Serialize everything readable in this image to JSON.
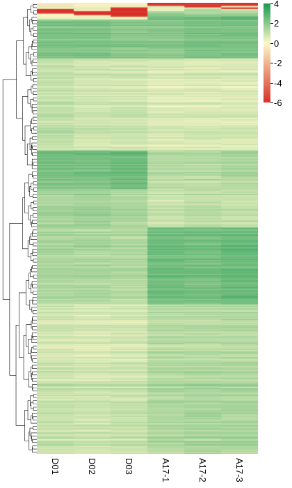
{
  "chart_data": {
    "type": "heatmap",
    "title": "",
    "xlabel": "",
    "ylabel": "",
    "columns": [
      "D01",
      "D02",
      "D03",
      "A17-1",
      "A17-2",
      "A17-3"
    ],
    "row_clustering": "hierarchical dendrogram on left",
    "colorscale": {
      "range": [
        -6,
        4
      ],
      "ticks": [
        4,
        2,
        0,
        -2,
        -4,
        -6
      ],
      "stops": [
        {
          "value": -6,
          "color": "#d73027"
        },
        {
          "value": 0,
          "color": "#fcf8c8"
        },
        {
          "value": 4,
          "color": "#1a9850"
        }
      ]
    },
    "row_blocks": [
      {
        "rows": 4,
        "values": [
          -0.6,
          -0.4,
          -0.4,
          -6.0,
          -5.8,
          -6.0
        ]
      },
      {
        "rows": 2,
        "values": [
          0.4,
          0.2,
          0.2,
          0.8,
          -5.8,
          -0.2
        ]
      },
      {
        "rows": 2,
        "values": [
          0.0,
          0.4,
          -6.0,
          0.4,
          0.6,
          -5.8
        ]
      },
      {
        "rows": 3,
        "values": [
          -6.0,
          -0.6,
          -6.0,
          0.4,
          1.4,
          0.8
        ]
      },
      {
        "rows": 3,
        "values": [
          -6.0,
          -6.0,
          -6.0,
          1.4,
          1.4,
          1.4
        ]
      },
      {
        "rows": 2,
        "values": [
          -0.2,
          -6.0,
          -6.0,
          2.0,
          1.6,
          1.8
        ]
      },
      {
        "rows": 2,
        "values": [
          0.2,
          -0.2,
          -5.8,
          2.2,
          2.0,
          2.0
        ]
      },
      {
        "rows": 4,
        "values": [
          0.2,
          0.2,
          0.4,
          2.4,
          2.6,
          3.0
        ]
      },
      {
        "rows": 50,
        "values": [
          2.2,
          2.2,
          2.0,
          2.0,
          2.2,
          2.2
        ]
      },
      {
        "rows": 120,
        "values": [
          1.0,
          0.8,
          0.8,
          0.6,
          0.6,
          0.6
        ]
      },
      {
        "rows": 50,
        "values": [
          2.3,
          2.3,
          2.5,
          1.2,
          1.2,
          1.4
        ]
      },
      {
        "rows": 50,
        "values": [
          1.5,
          1.6,
          1.4,
          0.9,
          1.1,
          1.0
        ]
      },
      {
        "rows": 100,
        "values": [
          1.4,
          1.4,
          1.3,
          2.5,
          2.4,
          2.6
        ]
      },
      {
        "rows": 100,
        "values": [
          0.8,
          0.7,
          0.8,
          1.3,
          1.3,
          1.3
        ]
      },
      {
        "rows": 94,
        "values": [
          1.0,
          0.9,
          1.0,
          1.4,
          1.5,
          1.5
        ]
      }
    ]
  }
}
